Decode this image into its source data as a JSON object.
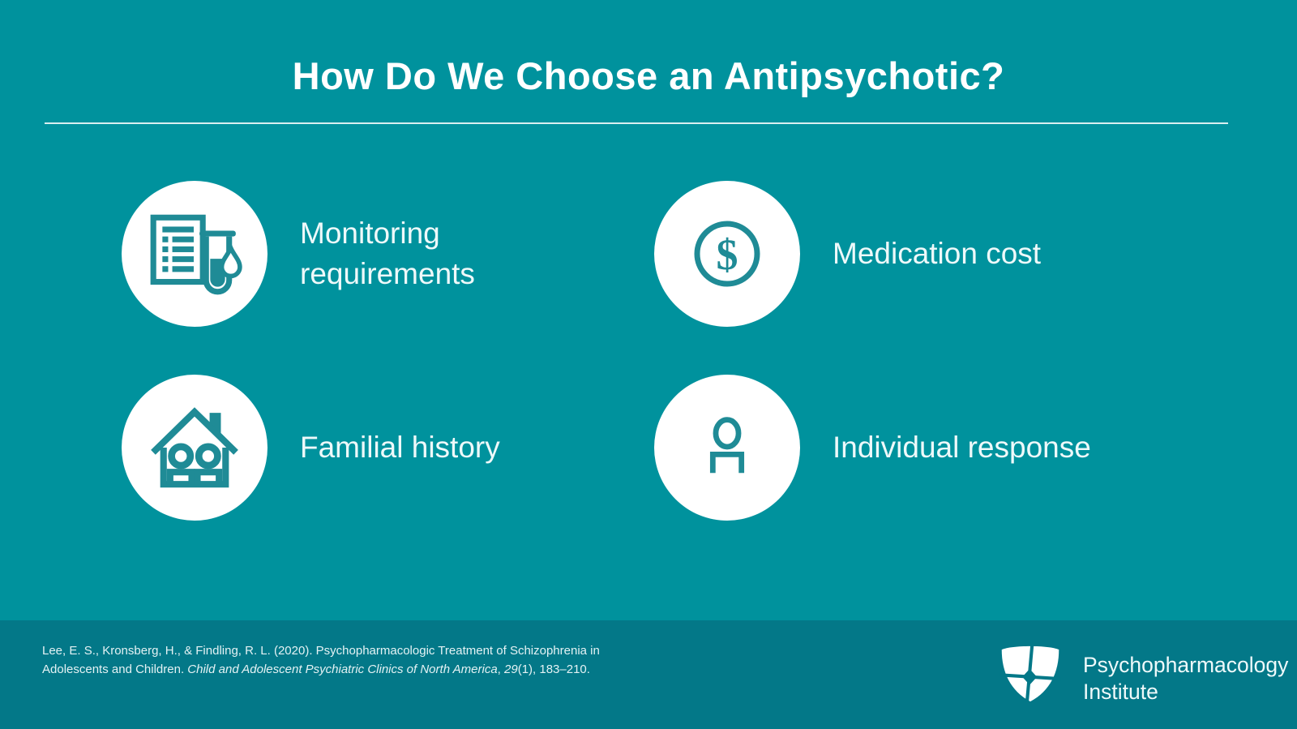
{
  "slide": {
    "title": "How Do We Choose an Antipsychotic?",
    "items": [
      {
        "label": "Monitoring requirements",
        "icon": "lab-report-test-tube-icon"
      },
      {
        "label": "Medication cost",
        "icon": "dollar-coin-icon"
      },
      {
        "label": "Familial history",
        "icon": "family-house-icon"
      },
      {
        "label": "Individual response",
        "icon": "person-icon"
      }
    ]
  },
  "footer": {
    "citation_parts": [
      {
        "text": "Lee, E. S., Kronsberg, H., & Findling, R. L. (2020). Psychopharmacologic Treatment of Schizophrenia in Adolescents and Children. ",
        "italic": false
      },
      {
        "text": "Child and Adolescent Psychiatric Clinics of North America",
        "italic": true
      },
      {
        "text": ", ",
        "italic": false
      },
      {
        "text": "29",
        "italic": true
      },
      {
        "text": "(1), 183–210.",
        "italic": false
      }
    ],
    "logo": {
      "line1": "Psychopharmacology",
      "line2": "Institute",
      "icon": "shield-cross-logo-icon"
    }
  },
  "colors": {
    "bg-main": "#00929d",
    "bg-footer": "#037888",
    "icon-teal": "#1f8b96",
    "text-white": "#ffffff",
    "text-soft": "#eef9fa",
    "text-cite": "#e4f2f4"
  }
}
